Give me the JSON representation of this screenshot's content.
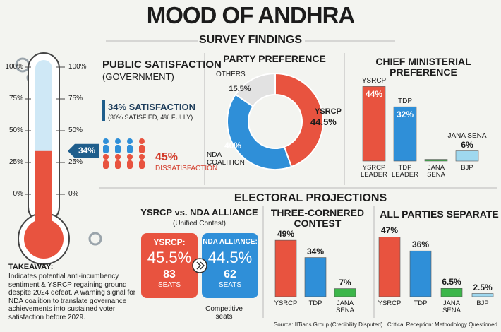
{
  "header": {
    "title": "MOOD OF ANDHRA",
    "subtitle": "SURVEY FINDINGS",
    "section": "ELECTORAL PROJECTIONS"
  },
  "chart_data": [
    {
      "type": "thermometer",
      "title": "PUBLIC SATISFACTION",
      "subtitle": "(GOVERNMENT)",
      "value": 34,
      "value_label": "34%",
      "ylim": [
        0,
        100
      ],
      "yticks": [
        {
          "value": 0,
          "label": "0%"
        },
        {
          "value": 25,
          "label": "25%"
        },
        {
          "value": 50,
          "label": "50%"
        },
        {
          "value": 75,
          "label": "75%"
        },
        {
          "value": 100,
          "label": "100%"
        }
      ],
      "color": "#e8533f",
      "annotations": [
        "34% SATISFACTION",
        "(30% SATISFIED, 4% FULLY)",
        "45%",
        "DISSATISFACTION"
      ]
    },
    {
      "type": "donut",
      "title": "PARTY PREFERENCE",
      "categories": [
        "YSRCP",
        "NDA COALITION",
        "OTHERS"
      ],
      "values": [
        44.5,
        40,
        15.5
      ],
      "value_labels": [
        "44.5%",
        "40%",
        "15.5%"
      ],
      "colors": [
        "#e8533f",
        "#2f8fd8",
        "#e2e2e2"
      ]
    },
    {
      "type": "bar",
      "title": "CHIEF MINISTERIAL PREFERENCE",
      "categories": [
        "YSRCP LEADER",
        "TDP LEADER",
        "JANA SENA",
        "BJP"
      ],
      "bar_labels": [
        "YSRCP",
        "TDP",
        null,
        "JANA SENA"
      ],
      "values": [
        44,
        32,
        1,
        6
      ],
      "value_labels": [
        "44%",
        "32%",
        null,
        "6%"
      ],
      "colors": [
        "#e8533f",
        "#2f8fd8",
        "#3cb64a",
        "#9fd8ef"
      ]
    },
    {
      "type": "comparison",
      "title": "YSRCP vs. NDA ALLIANCE",
      "subtitle": "(Unified Contest)",
      "categories": [
        "YSRCP:",
        "NDA ALLIANCE:"
      ],
      "values": [
        45.5,
        44.5
      ],
      "value_labels": [
        "45.5%",
        "44.5%"
      ],
      "seats": [
        83,
        62
      ],
      "seats_label": "SEATS",
      "colors": [
        "#e8533f",
        "#2f8fd8"
      ],
      "annotation": "Competitive seats"
    },
    {
      "type": "bar",
      "title": "THREE-CORNERED CONTEST",
      "categories": [
        "YSRCP",
        "TDP",
        "JANA SENA"
      ],
      "values": [
        49,
        34,
        7
      ],
      "value_labels": [
        "49%",
        "34%",
        "7%"
      ],
      "colors": [
        "#e8533f",
        "#2f8fd8",
        "#3cb64a"
      ]
    },
    {
      "type": "bar",
      "title": "ALL PARTIES SEPARATE",
      "categories": [
        "YSRCP",
        "TDP",
        "JANA SENA",
        "BJP"
      ],
      "values": [
        47,
        36,
        6.5,
        2.5
      ],
      "value_labels": [
        "47%",
        "36%",
        "6.5%",
        "2.5%"
      ],
      "colors": [
        "#e8533f",
        "#2f8fd8",
        "#3cb64a",
        "#9fd8ef"
      ]
    }
  ],
  "takeaway": {
    "label": "TAKEAWAY:",
    "text": "Indicates potential anti-incumbency sentiment & YSRCP regaining ground despite 2024 defeat. A warning signal for NDA coalition to translate governance achievements into sustained voter satisfaction before 2029."
  },
  "footer": {
    "source": "Source: IITians Group (Credibility Disputed) | Critical Reception: Methodology Questioned"
  }
}
